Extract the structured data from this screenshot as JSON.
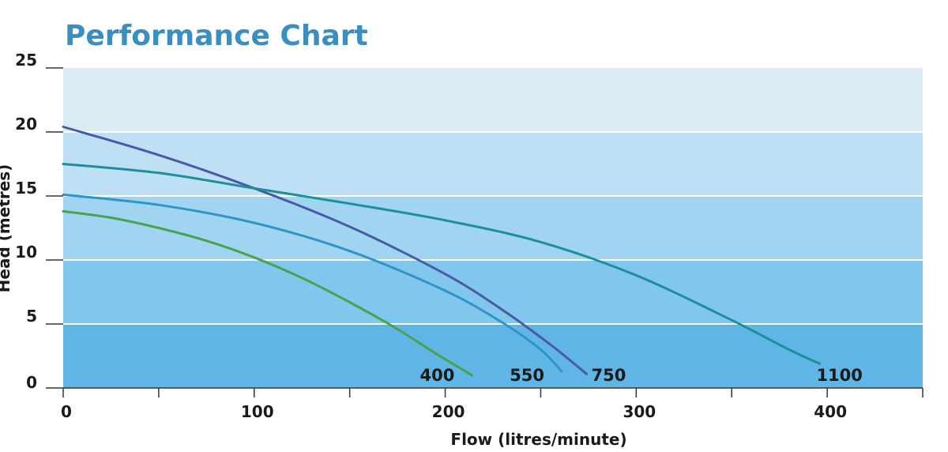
{
  "chart_data": {
    "type": "line",
    "title": "Performance Chart",
    "xlabel": "Flow (litres/minute)",
    "ylabel": "Head (metres)",
    "xlim": [
      0,
      450
    ],
    "ylim": [
      0,
      25
    ],
    "x_ticks": [
      0,
      100,
      200,
      300,
      400
    ],
    "y_ticks": [
      0,
      5,
      10,
      15,
      20,
      25
    ],
    "band_colors": [
      "#5fb6e6",
      "#81c6ec",
      "#a1d4f1",
      "#bfe0f4",
      "#daebf5"
    ],
    "grid": true,
    "series": [
      {
        "name": "400",
        "color": "#4aa24e",
        "points": [
          [
            0,
            13.8
          ],
          [
            25,
            13.3
          ],
          [
            50,
            12.5
          ],
          [
            75,
            11.5
          ],
          [
            100,
            10.2
          ],
          [
            125,
            8.6
          ],
          [
            150,
            6.7
          ],
          [
            175,
            4.6
          ],
          [
            195,
            2.7
          ],
          [
            214,
            1.0
          ]
        ]
      },
      {
        "name": "550",
        "color": "#2f95c9",
        "points": [
          [
            0,
            15.1
          ],
          [
            50,
            14.3
          ],
          [
            100,
            12.9
          ],
          [
            150,
            10.7
          ],
          [
            200,
            7.6
          ],
          [
            230,
            5.1
          ],
          [
            250,
            3.0
          ],
          [
            261,
            1.3
          ]
        ]
      },
      {
        "name": "750",
        "color": "#4a5aa6",
        "points": [
          [
            0,
            20.4
          ],
          [
            50,
            18.2
          ],
          [
            100,
            15.6
          ],
          [
            150,
            12.6
          ],
          [
            200,
            8.9
          ],
          [
            230,
            6.1
          ],
          [
            255,
            3.4
          ],
          [
            274,
            1.1
          ]
        ]
      },
      {
        "name": "1100",
        "color": "#1c8f9a",
        "points": [
          [
            0,
            17.5
          ],
          [
            50,
            16.8
          ],
          [
            100,
            15.6
          ],
          [
            150,
            14.4
          ],
          [
            200,
            13.1
          ],
          [
            250,
            11.4
          ],
          [
            300,
            8.8
          ],
          [
            350,
            5.3
          ],
          [
            380,
            3.0
          ],
          [
            396,
            1.9
          ]
        ]
      }
    ]
  }
}
